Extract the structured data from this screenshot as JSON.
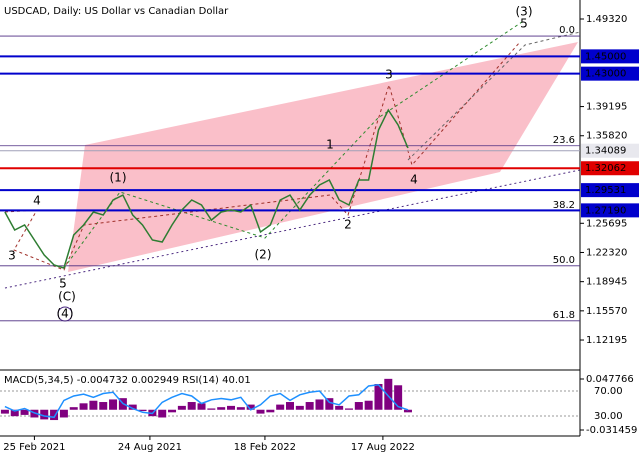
{
  "chart_data": [
    {
      "type": "line",
      "title": "USDCAD, Daily:  US Dollar vs Canadian Dollar",
      "color": "#2e7d32",
      "values": [
        1.27,
        1.2492,
        1.255,
        1.2376,
        1.2203,
        1.2087,
        1.2052,
        1.2434,
        1.255,
        1.27,
        1.2665,
        1.2839,
        1.2896,
        1.2665,
        1.255,
        1.2376,
        1.2353,
        1.255,
        1.2723,
        1.2839,
        1.2781,
        1.2607,
        1.27,
        1.2723,
        1.27,
        1.2781,
        1.2469,
        1.255,
        1.2839,
        1.2896,
        1.2723,
        1.2896,
        1.3012,
        1.307,
        1.2839,
        1.2781,
        1.307,
        1.307,
        1.3648,
        1.388,
        1.3706,
        1.344
      ],
      "xlim": [
        -0.5,
        58.5
      ],
      "xticks": [
        {
          "value": 3,
          "label": "25 Feb 2021"
        },
        {
          "value": 14.75,
          "label": "24 Aug 2021"
        },
        {
          "value": 26.45,
          "label": "18 Feb 2022"
        },
        {
          "value": 38.45,
          "label": "17 Aug 2022"
        }
      ],
      "ylim": [
        1.0896,
        1.5094
      ],
      "yticks": [
        {
          "value": 1.4932,
          "label": "1.49320"
        },
        1.39195,
        {
          "value": 1.3582,
          "label": "1.35820"
        },
        1.25695,
        {
          "value": 1.2232,
          "label": "1.22320"
        },
        1.18945,
        {
          "value": 1.1557,
          "label": "1.15570"
        },
        1.12195
      ],
      "levels": [
        {
          "value": 1.45,
          "label": "1.45000",
          "color": "#0000cc"
        },
        {
          "value": 1.43,
          "label": "1.43000",
          "color": "#0000cc"
        },
        {
          "value": 1.34089,
          "color": "#a0a0b8"
        },
        {
          "value": 1.32062,
          "color": "#e00000"
        },
        {
          "value": 1.29531,
          "color": "#0000cc"
        },
        {
          "value": 1.2719,
          "label": "1.27190",
          "color": "#0000cc"
        }
      ],
      "fib_levels": [
        {
          "ratio": "0.0",
          "level": 1.4735
        },
        {
          "ratio": "23.6",
          "level": 1.3466
        },
        {
          "ratio": "38.2",
          "level": 1.2714
        },
        {
          "ratio": "50.0",
          "level": 1.2078
        },
        {
          "ratio": "61.8",
          "level": 1.1442
        }
      ],
      "annotations": [
        {
          "text": "(3)",
          "color": "#2e8b2e"
        },
        {
          "text": "5",
          "color": "#a0302a"
        },
        {
          "text": "3",
          "color": "#a0302a"
        },
        {
          "text": "1",
          "color": "#a0302a"
        },
        {
          "text": "4",
          "color": "#a0302a"
        },
        {
          "text": "2",
          "color": "#a0302a"
        },
        {
          "text": "(1)",
          "color": "#2e8b2e"
        },
        {
          "text": "(2)",
          "color": "#2e8b2e"
        },
        {
          "text": "4",
          "color": "#a0302a"
        },
        {
          "text": "3",
          "color": "#a0302a"
        },
        {
          "text": "5",
          "color": "#a0302a"
        },
        {
          "text": "(C)",
          "color": "#2e8b2e"
        },
        {
          "text": "(4)",
          "color": "#4b2a80"
        }
      ]
    },
    {
      "type": "bar",
      "title": "MACD(5,34,5) -0.004732 0.002949 RSI(14) 40.01",
      "ylim": [
        -0.031459,
        0.047766
      ],
      "yticks": [
        0.047766,
        -0.031459
      ],
      "y2lim": [
        7.6,
        89.2
      ],
      "y2ticks": [
        {
          "value": 70,
          "label": "70.00"
        },
        {
          "value": 30,
          "label": "30.00"
        }
      ],
      "series": [
        {
          "name": "MACD",
          "color": "#800080",
          "values": [
            -0.006,
            -0.01,
            -0.008,
            -0.012,
            -0.015,
            -0.016,
            -0.012,
            0.004,
            0.01,
            0.014,
            0.012,
            0.016,
            0.018,
            0.008,
            -0.002,
            -0.01,
            -0.012,
            -0.004,
            0.006,
            0.012,
            0.01,
            0.002,
            0.004,
            0.006,
            0.004,
            0.008,
            -0.006,
            -0.004,
            0.008,
            0.012,
            0.006,
            0.012,
            0.016,
            0.018,
            0.006,
            0.002,
            0.012,
            0.014,
            0.04,
            0.048,
            0.038,
            -0.004
          ]
        },
        {
          "name": "RSI",
          "color": "#1e90ff",
          "axis": "y2",
          "values": [
            45,
            38,
            42,
            35,
            30,
            28,
            55,
            62,
            65,
            60,
            66,
            68,
            50,
            42,
            36,
            34,
            52,
            60,
            66,
            62,
            50,
            56,
            58,
            56,
            60,
            40,
            48,
            62,
            66,
            55,
            64,
            68,
            70,
            52,
            48,
            62,
            64,
            78,
            80,
            62,
            45,
            40
          ]
        }
      ]
    }
  ]
}
